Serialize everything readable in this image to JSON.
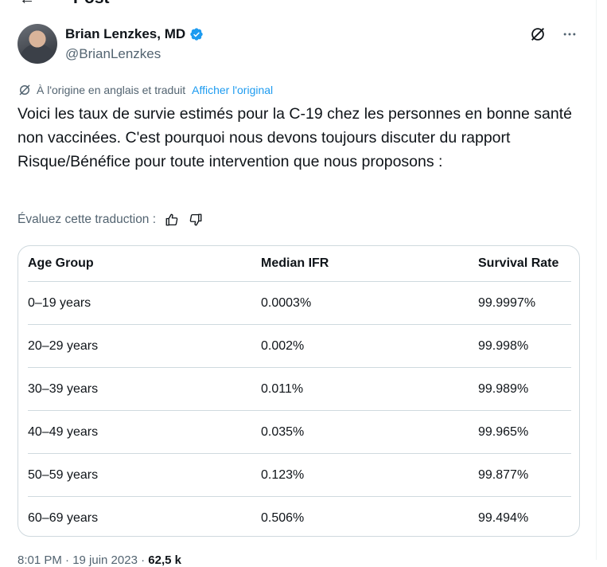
{
  "header": {
    "back_icon": "arrow-left-icon",
    "title": "Post"
  },
  "author": {
    "name": "Brian Lenzkes, MD",
    "handle": "@BrianLenzkes",
    "verified_color": "#1d9bf0"
  },
  "translation": {
    "notice": "À l'origine en anglais et traduit",
    "show_original": "Afficher l'original"
  },
  "tweet": {
    "text": "Voici les taux de survie estimés pour la C-19 chez les personnes en bonne santé non vaccinées. C'est pourquoi nous devons toujours discuter du rapport Risque/Bénéfice pour toute intervention que nous proposons :"
  },
  "rating": {
    "label": "Évaluez cette traduction :"
  },
  "table": {
    "headers": [
      "Age Group",
      "Median IFR",
      "Survival Rate"
    ],
    "rows": [
      [
        "0–19 years",
        "0.0003%",
        "99.9997%"
      ],
      [
        "20–29 years",
        "0.002%",
        "99.998%"
      ],
      [
        "30–39 years",
        "0.011%",
        "99.989%"
      ],
      [
        "40–49 years",
        "0.035%",
        "99.965%"
      ],
      [
        "50–59 years",
        "0.123%",
        "99.877%"
      ],
      [
        "60–69 years",
        "0.506%",
        "99.494%"
      ]
    ]
  },
  "footer": {
    "time": "8:01 PM · 19 juin 2023",
    "views": "62,5 k"
  }
}
